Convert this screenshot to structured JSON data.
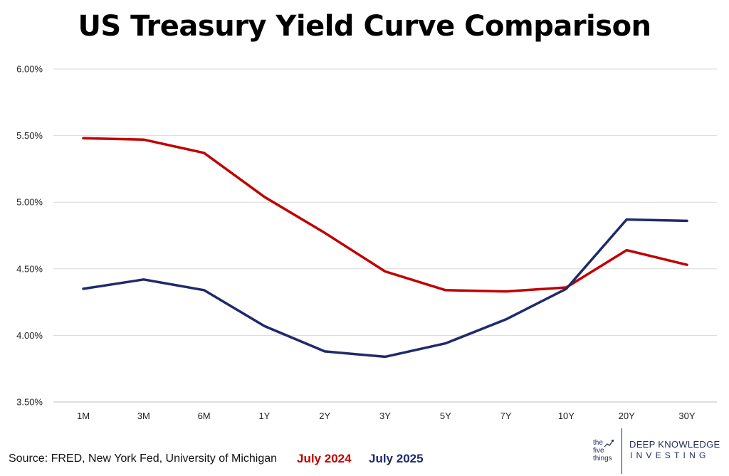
{
  "chart_data": {
    "type": "line",
    "title": "US Treasury Yield Curve Comparison",
    "categories": [
      "1M",
      "3M",
      "6M",
      "1Y",
      "2Y",
      "3Y",
      "5Y",
      "7Y",
      "10Y",
      "20Y",
      "30Y"
    ],
    "y_ticks": [
      "3.50%",
      "4.00%",
      "4.50%",
      "5.00%",
      "5.50%",
      "6.00%"
    ],
    "ylim": [
      3.5,
      6.0
    ],
    "grid": true,
    "legend_placement": "bottom",
    "series": [
      {
        "name": "July 2024",
        "color": "#c00000",
        "values": [
          5.48,
          5.47,
          5.37,
          5.04,
          4.77,
          4.48,
          4.34,
          4.33,
          4.36,
          4.64,
          4.53
        ]
      },
      {
        "name": "July 2025",
        "color": "#1f2a6b",
        "values": [
          4.35,
          4.42,
          4.34,
          4.07,
          3.88,
          3.84,
          3.94,
          4.12,
          4.35,
          4.87,
          4.86
        ]
      }
    ]
  },
  "footer": {
    "source": "Source: FRED, New York Fed, University of Michigan"
  },
  "branding": {
    "logo_five_things": [
      "the",
      "five",
      "things"
    ],
    "dki_line1": "DEEP KNOWLEDGE",
    "dki_line2": "INVESTING"
  }
}
